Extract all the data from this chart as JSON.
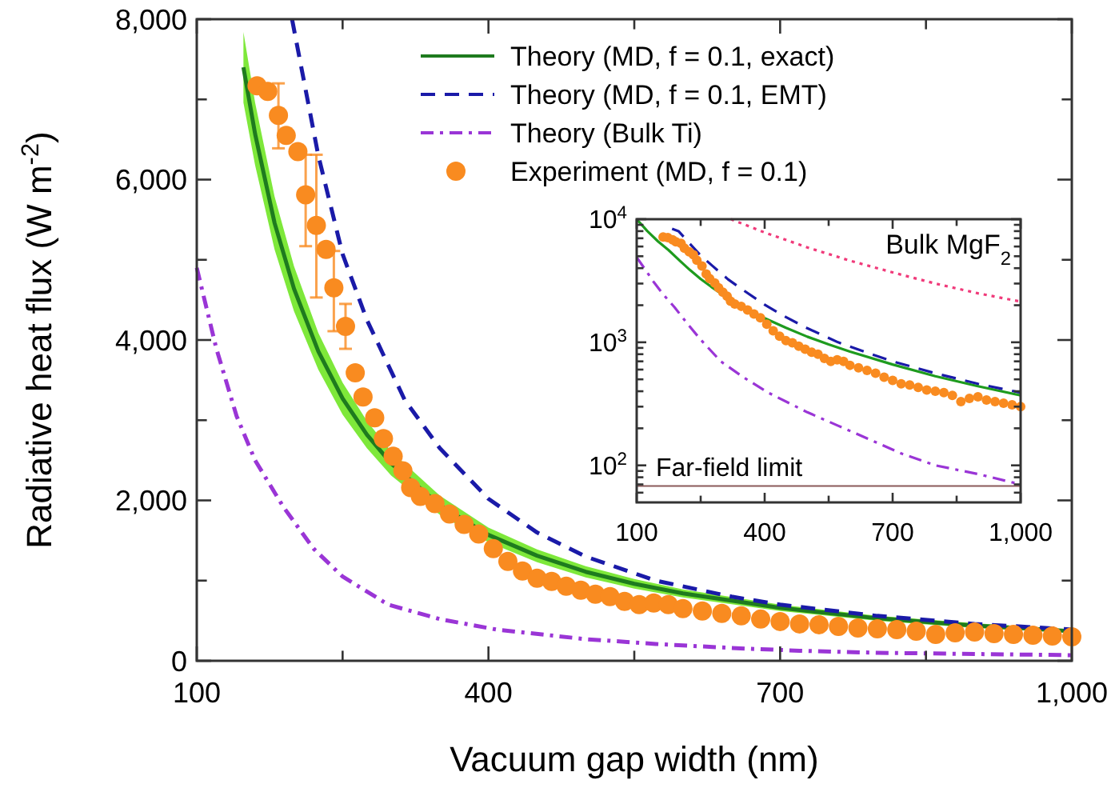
{
  "chart_data": [
    {
      "type": "line",
      "xlabel": "Vacuum gap width (nm)",
      "ylabel": "Radiative heat flux (W m$^{-2}$)",
      "xlim": [
        100,
        1000
      ],
      "ylim": [
        0,
        8000
      ],
      "xticks": [
        100,
        {
          "value": 250,
          "label": null
        },
        400,
        {
          "value": 550,
          "label": null
        },
        700,
        {
          "value": 850,
          "label": null
        },
        {
          "value": 1000,
          "label": "1,000"
        }
      ],
      "yticks": [
        0,
        {
          "value": 1000,
          "label": null
        },
        {
          "value": 2000,
          "label": "2,000"
        },
        {
          "value": 3000,
          "label": null
        },
        {
          "value": 4000,
          "label": "4,000"
        },
        {
          "value": 5000,
          "label": null
        },
        {
          "value": 6000,
          "label": "6,000"
        },
        {
          "value": 7000,
          "label": null
        },
        {
          "value": 8000,
          "label": "8,000"
        }
      ],
      "grid": false,
      "legend": "top right",
      "series": [
        {
          "name": "Theory (MD, f = 0.1, exact)",
          "color": "#1e7b1e",
          "line_style": "solid",
          "marker": "none",
          "x": [
            148,
            160,
            180,
            200,
            225,
            250,
            275,
            300,
            350,
            400,
            450,
            500,
            550,
            600,
            700,
            800,
            900,
            1000
          ],
          "values": [
            7400,
            6570,
            5460,
            4640,
            3860,
            3270,
            2820,
            2460,
            1940,
            1570,
            1310,
            1110,
            960,
            840,
            660,
            530,
            440,
            370
          ],
          "lower": [
            6960,
            6180,
            5130,
            4360,
            3630,
            3070,
            2650,
            2310,
            1820,
            1480,
            1230,
            1040,
            900,
            790,
            620,
            500,
            410,
            350
          ],
          "upper": [
            7840,
            6960,
            5790,
            4920,
            4090,
            3470,
            2990,
            2610,
            2060,
            1660,
            1390,
            1180,
            1020,
            890,
            700,
            560,
            470,
            390
          ]
        },
        {
          "name": "Theory (MD, f = 0.1, EMT)",
          "color": "#1a1aa8",
          "line_style": "dashed",
          "marker": "none",
          "x": [
            198,
            225,
            250,
            275,
            314,
            350,
            400,
            450,
            500,
            572,
            650,
            700,
            800,
            900,
            1000
          ],
          "values": [
            8000,
            6300,
            5070,
            4250,
            3250,
            2650,
            2020,
            1600,
            1300,
            1000,
            800,
            700,
            560,
            460,
            390
          ]
        },
        {
          "name": "Theory (Bulk Ti)",
          "color": "#9a35d6",
          "line_style": "dashdot",
          "marker": "none",
          "x": [
            100,
            120,
            141,
            160,
            189,
            220,
            250,
            297,
            350,
            408,
            500,
            572,
            650,
            720,
            800,
            900,
            1000
          ],
          "values": [
            4900,
            3900,
            3050,
            2500,
            1920,
            1400,
            1050,
            700,
            520,
            390,
            270,
            210,
            160,
            125,
            100,
            85,
            70
          ]
        },
        {
          "name": "Experiment (MD, f = 0.1)",
          "type": "scatter",
          "color": "#f98b20",
          "marker": "circle",
          "x": [
            162,
            173,
            184,
            192,
            204,
            212,
            223,
            233,
            241,
            253,
            263,
            271,
            283,
            292,
            302,
            312,
            320,
            330,
            345,
            360,
            375,
            390,
            405,
            420,
            435,
            450,
            465,
            480,
            495,
            510,
            525,
            540,
            555,
            570,
            585,
            600,
            620,
            640,
            660,
            680,
            700,
            720,
            740,
            760,
            780,
            800,
            820,
            840,
            860,
            880,
            900,
            920,
            940,
            960,
            980,
            1000
          ],
          "values": [
            7170,
            7100,
            6800,
            6550,
            6350,
            5810,
            5430,
            5130,
            4650,
            4170,
            3590,
            3290,
            3030,
            2770,
            2550,
            2370,
            2160,
            2050,
            1960,
            1830,
            1700,
            1580,
            1400,
            1240,
            1120,
            1030,
            990,
            930,
            880,
            830,
            800,
            740,
            700,
            720,
            700,
            650,
            620,
            590,
            560,
            520,
            490,
            460,
            450,
            430,
            410,
            400,
            390,
            370,
            330,
            350,
            360,
            340,
            330,
            320,
            310,
            300
          ],
          "errors": [
            null,
            null,
            [
              6390,
              7200
            ],
            null,
            null,
            [
              5170,
              6310
            ],
            [
              4530,
              6310
            ],
            null,
            [
              4110,
              5110
            ],
            [
              3890,
              4450
            ],
            null,
            null,
            null,
            null,
            null,
            null,
            null,
            null,
            null,
            null,
            null,
            null,
            null,
            null,
            null,
            null,
            null,
            null,
            null,
            null,
            null,
            null,
            null,
            null,
            null,
            null,
            null,
            null,
            null,
            null,
            null,
            null,
            null,
            null,
            null,
            null,
            null,
            null,
            null,
            null,
            null,
            null,
            null,
            null,
            null,
            null
          ]
        }
      ]
    },
    {
      "type": "line",
      "log": "y",
      "xlim": [
        100,
        1000
      ],
      "ylim": [
        50,
        10000
      ],
      "xticks": [
        100,
        {
          "value": 250,
          "label": null
        },
        400,
        {
          "value": 550,
          "label": null
        },
        700,
        {
          "value": 850,
          "label": null
        },
        {
          "value": 1000,
          "label": "1,000"
        }
      ],
      "yticks": [
        {
          "value": 60,
          "label": null
        },
        {
          "value": 70,
          "label": null
        },
        {
          "value": 80,
          "label": null
        },
        {
          "value": 90,
          "label": null
        },
        {
          "value": 100,
          "label": "10$^{2}$"
        },
        {
          "value": 200,
          "label": null
        },
        {
          "value": 300,
          "label": null
        },
        {
          "value": 400,
          "label": null
        },
        {
          "value": 500,
          "label": null
        },
        {
          "value": 600,
          "label": null
        },
        {
          "value": 700,
          "label": null
        },
        {
          "value": 800,
          "label": null
        },
        {
          "value": 900,
          "label": null
        },
        {
          "value": 1000,
          "label": "10$^{3}$"
        },
        {
          "value": 2000,
          "label": null
        },
        {
          "value": 3000,
          "label": null
        },
        {
          "value": 4000,
          "label": null
        },
        {
          "value": 5000,
          "label": null
        },
        {
          "value": 6000,
          "label": null
        },
        {
          "value": 7000,
          "label": null
        },
        {
          "value": 8000,
          "label": null
        },
        {
          "value": 9000,
          "label": null
        },
        {
          "value": 10000,
          "label": "10$^{4}$"
        }
      ],
      "grid": false,
      "ref_lines": [
        {
          "axis": "y",
          "value": 68,
          "label": "Far-field limit",
          "color": "#8a5a5a"
        }
      ],
      "series": [
        {
          "name": "Bulk MgF$_{2}$",
          "color": "#f03a7a",
          "line_style": "dotted",
          "marker": "none",
          "x": [
            321,
            400,
            500,
            600,
            707,
            800,
            900,
            1000
          ],
          "values": [
            10000,
            7800,
            5900,
            4600,
            3640,
            3000,
            2500,
            2140
          ]
        },
        {
          "color": "#1e9b1e",
          "line_style": "solid",
          "marker": "none",
          "x": [
            100,
            125,
            150,
            175,
            200,
            225,
            250,
            275,
            300,
            350,
            400,
            450,
            500,
            550,
            600,
            700,
            800,
            900,
            1000
          ],
          "values": [
            10000,
            8000,
            6600,
            5600,
            4640,
            3860,
            3270,
            2820,
            2460,
            1940,
            1570,
            1310,
            1110,
            960,
            840,
            660,
            530,
            440,
            370
          ]
        },
        {
          "color": "#1a1aa8",
          "line_style": "dashed",
          "marker": "none",
          "x": [
            183,
            198,
            225,
            250,
            275,
            314,
            350,
            400,
            450,
            500,
            572,
            650,
            700,
            800,
            900,
            1000
          ],
          "values": [
            8370,
            8000,
            6300,
            5070,
            4250,
            3250,
            2650,
            2020,
            1600,
            1300,
            1000,
            800,
            700,
            560,
            460,
            390
          ]
        },
        {
          "color": "#9a35d6",
          "line_style": "dashdot",
          "marker": "none",
          "x": [
            100,
            120,
            141,
            160,
            189,
            220,
            250,
            297,
            350,
            408,
            500,
            572,
            650,
            720,
            800,
            900,
            1000
          ],
          "values": [
            4900,
            3900,
            3050,
            2500,
            1920,
            1400,
            1050,
            700,
            520,
            390,
            270,
            210,
            160,
            125,
            100,
            85,
            70
          ]
        },
        {
          "type": "scatter",
          "color": "#f98b20",
          "marker": "circle",
          "x": [
            162,
            173,
            184,
            192,
            204,
            212,
            223,
            233,
            241,
            253,
            263,
            271,
            283,
            292,
            302,
            312,
            320,
            330,
            345,
            360,
            375,
            390,
            405,
            420,
            435,
            450,
            465,
            480,
            495,
            510,
            525,
            540,
            555,
            570,
            585,
            600,
            620,
            640,
            660,
            680,
            700,
            720,
            740,
            760,
            780,
            800,
            820,
            840,
            860,
            880,
            900,
            920,
            940,
            960,
            980,
            1000
          ],
          "values": [
            7170,
            7100,
            6800,
            6550,
            6350,
            5810,
            5430,
            5130,
            4650,
            4170,
            3590,
            3290,
            3030,
            2770,
            2550,
            2370,
            2160,
            2050,
            1960,
            1830,
            1700,
            1580,
            1400,
            1240,
            1120,
            1030,
            990,
            930,
            880,
            830,
            800,
            740,
            700,
            720,
            700,
            650,
            620,
            590,
            560,
            520,
            490,
            460,
            450,
            430,
            410,
            400,
            390,
            370,
            330,
            350,
            360,
            340,
            330,
            320,
            310,
            300
          ]
        }
      ]
    }
  ]
}
